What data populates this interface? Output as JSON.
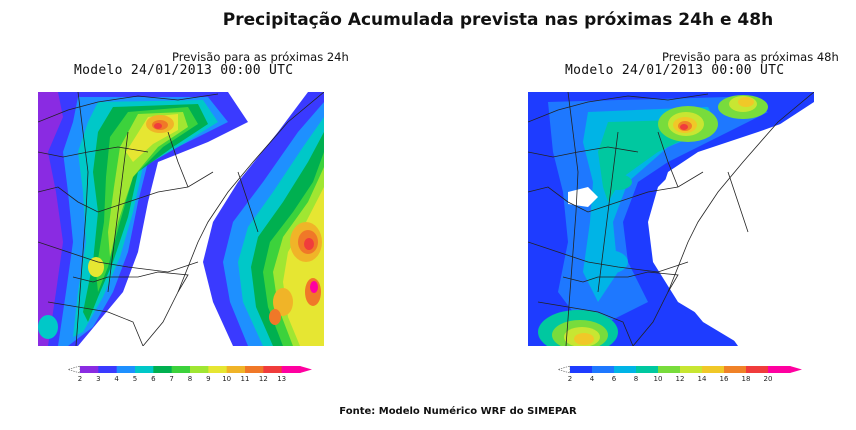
{
  "title": "Precipitação Acumulada prevista nas próximas 24h e 48h",
  "panels": [
    {
      "subtitle": "Previsão para as próximas 24h",
      "model": "Modelo 24/01/2013 00:00 UTC",
      "colorbar_ticks": [
        "2",
        "3",
        "4",
        "5",
        "6",
        "7",
        "8",
        "9",
        "10",
        "11",
        "12",
        "13"
      ],
      "colorbar_colors": [
        "#8a2be2",
        "#3a3aff",
        "#1e90ff",
        "#00c8c8",
        "#00b050",
        "#3cd23c",
        "#a0e632",
        "#e6e632",
        "#f0b428",
        "#f07828",
        "#f03c3c",
        "#ff00a0"
      ]
    },
    {
      "subtitle": "Previsão para as próximas 48h",
      "model": "Modelo 24/01/2013 00:00 UTC",
      "colorbar_ticks": [
        "2",
        "4",
        "6",
        "8",
        "10",
        "12",
        "14",
        "16",
        "18",
        "20"
      ],
      "colorbar_colors": [
        "#1e3cff",
        "#1e78ff",
        "#00b4e6",
        "#00c8a0",
        "#78dc3c",
        "#c8e632",
        "#f0c828",
        "#f08228",
        "#f03c3c",
        "#ff00a0"
      ]
    }
  ],
  "source": "Fonte: Modelo Numérico WRF do SIMEPAR"
}
